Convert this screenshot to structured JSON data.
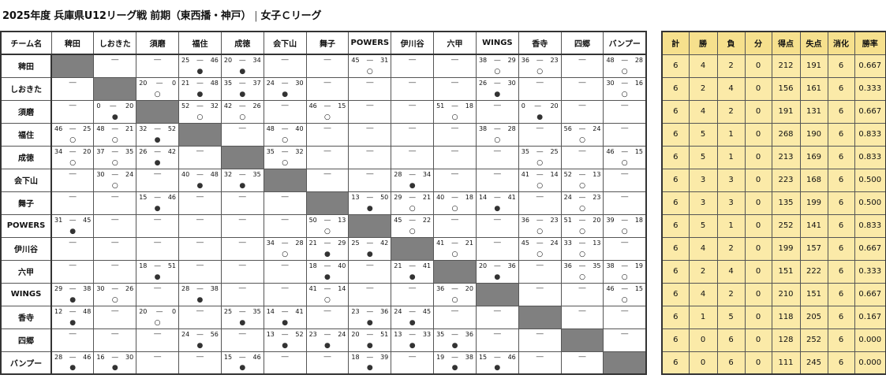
{
  "title": {
    "main": "2025年度 兵庫県U12リーグ戦 前期（東西播・神戸）",
    "sep": "|",
    "sub": "女子Ｃリーグ"
  },
  "colors": {
    "diag": "#808080",
    "stats_bg": "#fbeaa8",
    "stats_head": "#f6e08d"
  },
  "matrix_header": "チーム名",
  "teams": [
    "稗田",
    "しおきた",
    "須磨",
    "福住",
    "成徳",
    "会下山",
    "舞子",
    "POWERS",
    "伊川谷",
    "六甲",
    "WINGS",
    "香寺",
    "四郷",
    "バンプー"
  ],
  "dash": "―",
  "win_mark": "○",
  "loss_mark": "●",
  "results": [
    [
      null,
      null,
      null,
      [
        "25",
        "46",
        "L"
      ],
      [
        "20",
        "34",
        "L"
      ],
      null,
      null,
      [
        "45",
        "31",
        "W"
      ],
      null,
      null,
      [
        "38",
        "29",
        "W"
      ],
      [
        "36",
        "23",
        "W"
      ],
      null,
      [
        "48",
        "28",
        "W"
      ]
    ],
    [
      null,
      null,
      [
        "20",
        "0",
        "W"
      ],
      [
        "21",
        "48",
        "L"
      ],
      [
        "35",
        "37",
        "L"
      ],
      [
        "24",
        "30",
        "L"
      ],
      null,
      null,
      null,
      null,
      [
        "26",
        "30",
        "L"
      ],
      null,
      null,
      [
        "30",
        "16",
        "W"
      ]
    ],
    [
      null,
      [
        "0",
        "20",
        "L"
      ],
      null,
      [
        "52",
        "32",
        "W"
      ],
      [
        "42",
        "26",
        "W"
      ],
      null,
      [
        "46",
        "15",
        "W"
      ],
      null,
      null,
      [
        "51",
        "18",
        "W"
      ],
      null,
      [
        "0",
        "20",
        "L"
      ],
      null,
      null
    ],
    [
      [
        "46",
        "25",
        "W"
      ],
      [
        "48",
        "21",
        "W"
      ],
      [
        "32",
        "52",
        "L"
      ],
      null,
      null,
      [
        "48",
        "40",
        "W"
      ],
      null,
      null,
      null,
      null,
      [
        "38",
        "28",
        "W"
      ],
      null,
      [
        "56",
        "24",
        "W"
      ],
      null
    ],
    [
      [
        "34",
        "20",
        "W"
      ],
      [
        "37",
        "35",
        "W"
      ],
      [
        "26",
        "42",
        "L"
      ],
      null,
      null,
      [
        "35",
        "32",
        "W"
      ],
      null,
      null,
      null,
      null,
      null,
      [
        "35",
        "25",
        "W"
      ],
      null,
      [
        "46",
        "15",
        "W"
      ]
    ],
    [
      null,
      [
        "30",
        "24",
        "W"
      ],
      null,
      [
        "40",
        "48",
        "L"
      ],
      [
        "32",
        "35",
        "L"
      ],
      null,
      null,
      null,
      [
        "28",
        "34",
        "L"
      ],
      null,
      null,
      [
        "41",
        "14",
        "W"
      ],
      [
        "52",
        "13",
        "W"
      ],
      null
    ],
    [
      null,
      null,
      [
        "15",
        "46",
        "L"
      ],
      null,
      null,
      null,
      null,
      [
        "13",
        "50",
        "L"
      ],
      [
        "29",
        "21",
        "W"
      ],
      [
        "40",
        "18",
        "W"
      ],
      [
        "14",
        "41",
        "L"
      ],
      null,
      [
        "24",
        "23",
        "W"
      ],
      null
    ],
    [
      [
        "31",
        "45",
        "L"
      ],
      null,
      null,
      null,
      null,
      null,
      [
        "50",
        "13",
        "W"
      ],
      null,
      [
        "45",
        "22",
        "W"
      ],
      null,
      null,
      [
        "36",
        "23",
        "W"
      ],
      [
        "51",
        "20",
        "W"
      ],
      [
        "39",
        "18",
        "W"
      ]
    ],
    [
      null,
      null,
      null,
      null,
      null,
      [
        "34",
        "28",
        "W"
      ],
      [
        "21",
        "29",
        "L"
      ],
      [
        "25",
        "42",
        "L"
      ],
      null,
      [
        "41",
        "21",
        "W"
      ],
      null,
      [
        "45",
        "24",
        "W"
      ],
      [
        "33",
        "13",
        "W"
      ],
      null
    ],
    [
      null,
      null,
      [
        "18",
        "51",
        "L"
      ],
      null,
      null,
      null,
      [
        "18",
        "40",
        "L"
      ],
      null,
      [
        "21",
        "41",
        "L"
      ],
      null,
      [
        "20",
        "36",
        "L"
      ],
      null,
      [
        "36",
        "35",
        "W"
      ],
      [
        "38",
        "19",
        "W"
      ]
    ],
    [
      [
        "29",
        "38",
        "L"
      ],
      [
        "30",
        "26",
        "W"
      ],
      null,
      [
        "28",
        "38",
        "L"
      ],
      null,
      null,
      [
        "41",
        "14",
        "W"
      ],
      null,
      null,
      [
        "36",
        "20",
        "W"
      ],
      null,
      null,
      null,
      [
        "46",
        "15",
        "W"
      ]
    ],
    [
      [
        "12",
        "48",
        "L"
      ],
      null,
      [
        "20",
        "0",
        "W"
      ],
      null,
      [
        "25",
        "35",
        "L"
      ],
      [
        "14",
        "41",
        "L"
      ],
      null,
      [
        "23",
        "36",
        "L"
      ],
      [
        "24",
        "45",
        "L"
      ],
      null,
      null,
      null,
      null,
      null
    ],
    [
      null,
      null,
      null,
      [
        "24",
        "56",
        "L"
      ],
      null,
      [
        "13",
        "52",
        "L"
      ],
      [
        "23",
        "24",
        "L"
      ],
      [
        "20",
        "51",
        "L"
      ],
      [
        "13",
        "33",
        "L"
      ],
      [
        "35",
        "36",
        "L"
      ],
      null,
      null,
      null,
      null
    ],
    [
      [
        "28",
        "46",
        "L"
      ],
      [
        "16",
        "30",
        "L"
      ],
      null,
      null,
      [
        "15",
        "46",
        "L"
      ],
      null,
      null,
      [
        "18",
        "39",
        "L"
      ],
      null,
      [
        "19",
        "38",
        "L"
      ],
      [
        "15",
        "46",
        "L"
      ],
      null,
      null,
      null
    ]
  ],
  "stats_headers": [
    "計",
    "勝",
    "負",
    "分",
    "得点",
    "失点",
    "消化",
    "勝率"
  ],
  "stats": [
    [
      "6",
      "4",
      "2",
      "0",
      "212",
      "191",
      "6",
      "0.667"
    ],
    [
      "6",
      "2",
      "4",
      "0",
      "156",
      "161",
      "6",
      "0.333"
    ],
    [
      "6",
      "4",
      "2",
      "0",
      "191",
      "131",
      "6",
      "0.667"
    ],
    [
      "6",
      "5",
      "1",
      "0",
      "268",
      "190",
      "6",
      "0.833"
    ],
    [
      "6",
      "5",
      "1",
      "0",
      "213",
      "169",
      "6",
      "0.833"
    ],
    [
      "6",
      "3",
      "3",
      "0",
      "223",
      "168",
      "6",
      "0.500"
    ],
    [
      "6",
      "3",
      "3",
      "0",
      "135",
      "199",
      "6",
      "0.500"
    ],
    [
      "6",
      "5",
      "1",
      "0",
      "252",
      "141",
      "6",
      "0.833"
    ],
    [
      "6",
      "4",
      "2",
      "0",
      "199",
      "157",
      "6",
      "0.667"
    ],
    [
      "6",
      "2",
      "4",
      "0",
      "151",
      "222",
      "6",
      "0.333"
    ],
    [
      "6",
      "4",
      "2",
      "0",
      "210",
      "151",
      "6",
      "0.667"
    ],
    [
      "6",
      "1",
      "5",
      "0",
      "118",
      "205",
      "6",
      "0.167"
    ],
    [
      "6",
      "0",
      "6",
      "0",
      "128",
      "252",
      "6",
      "0.000"
    ],
    [
      "6",
      "0",
      "6",
      "0",
      "111",
      "245",
      "6",
      "0.000"
    ]
  ]
}
